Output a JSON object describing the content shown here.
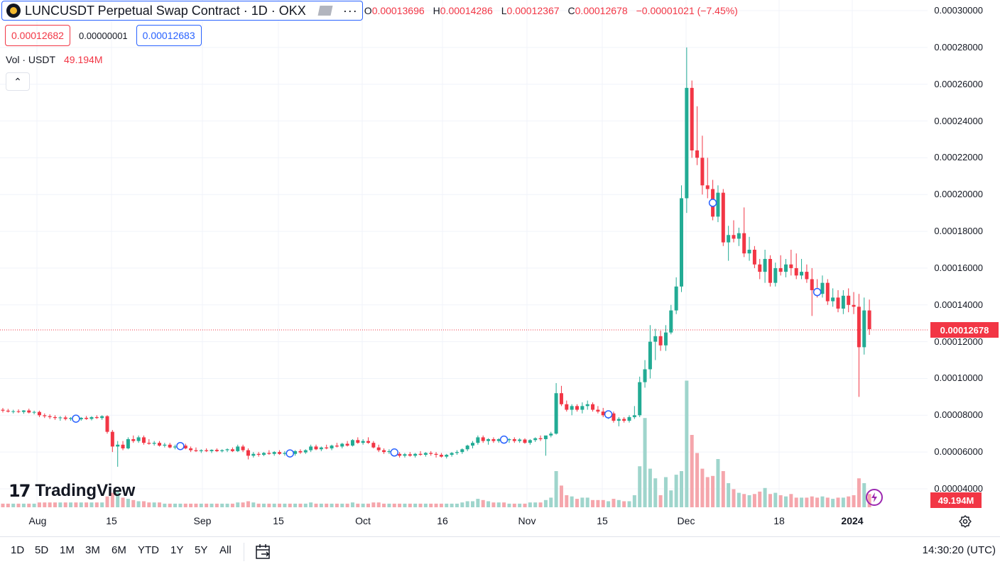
{
  "header": {
    "title": "LUNCUSDT Perpetual Swap Contract · 1D · OKX",
    "dots": "···",
    "ohlc": [
      {
        "label": "O",
        "value": "0.00013696"
      },
      {
        "label": "H",
        "value": "0.00014286"
      },
      {
        "label": "L",
        "value": "0.00012367"
      },
      {
        "label": "C",
        "value": "0.00012678"
      },
      {
        "label": "",
        "value": "−0.00001021 (−7.45%)"
      }
    ]
  },
  "trade": {
    "bid": "0.00012682",
    "spread": "0.00000001",
    "ask": "0.00012683"
  },
  "volume_legend": {
    "label": "Vol · USDT",
    "value": "49.194M"
  },
  "collapse_glyph": "⌃",
  "brand": {
    "mark": "17",
    "name": "TradingView"
  },
  "price_axis": {
    "labels": [
      "0.00030000",
      "0.00028000",
      "0.00026000",
      "0.00024000",
      "0.00022000",
      "0.00020000",
      "0.00018000",
      "0.00016000",
      "0.00014000",
      "0.00012000",
      "0.00010000",
      "0.00008000",
      "0.00006000",
      "0.00004000"
    ],
    "last_price": "0.00012678",
    "volume_tag": "49.194M"
  },
  "time_axis": [
    {
      "label": "Aug",
      "bold": false
    },
    {
      "label": "15",
      "bold": false
    },
    {
      "label": "Sep",
      "bold": false
    },
    {
      "label": "15",
      "bold": false
    },
    {
      "label": "Oct",
      "bold": false
    },
    {
      "label": "16",
      "bold": false
    },
    {
      "label": "Nov",
      "bold": false
    },
    {
      "label": "15",
      "bold": false
    },
    {
      "label": "Dec",
      "bold": false
    },
    {
      "label": "18",
      "bold": false
    },
    {
      "label": "2024",
      "bold": true
    }
  ],
  "bottom_bar": {
    "ranges": [
      "1D",
      "5D",
      "1M",
      "3M",
      "6M",
      "YTD",
      "1Y",
      "5Y",
      "All"
    ],
    "clock": "14:30:20 (UTC)"
  },
  "colors": {
    "up": "#22ab94",
    "down": "#f23645",
    "up_vol": "#9fd5cc",
    "down_vol": "#f5a6ac",
    "accent": "#2962ff"
  },
  "chart_data": {
    "type": "candlestick",
    "y_range": [
      3e-05,
      0.0003
    ],
    "candles": [
      [
        8.3e-05,
        8.4e-05,
        8.15e-05,
        8.25e-05,
        0.3
      ],
      [
        8.25e-05,
        8.35e-05,
        8.15e-05,
        8.2e-05,
        0.3
      ],
      [
        8.2e-05,
        8.3e-05,
        8.1e-05,
        8.22e-05,
        0.3
      ],
      [
        8.22e-05,
        8.32e-05,
        8.12e-05,
        8.18e-05,
        0.3
      ],
      [
        8.18e-05,
        8.28e-05,
        8.08e-05,
        8.26e-05,
        0.3
      ],
      [
        8.26e-05,
        8.36e-05,
        8.1e-05,
        8.15e-05,
        0.3
      ],
      [
        8.15e-05,
        8.25e-05,
        8.05e-05,
        8.18e-05,
        0.3
      ],
      [
        8.18e-05,
        8.25e-05,
        7.9e-05,
        8e-05,
        0.4
      ],
      [
        8e-05,
        8.1e-05,
        7.85e-05,
        7.95e-05,
        0.4
      ],
      [
        7.95e-05,
        8.05e-05,
        7.8e-05,
        7.9e-05,
        0.4
      ],
      [
        7.9e-05,
        8e-05,
        7.75e-05,
        7.85e-05,
        0.4
      ],
      [
        7.85e-05,
        7.95e-05,
        7.7e-05,
        7.88e-05,
        0.4
      ],
      [
        7.88e-05,
        7.98e-05,
        7.72e-05,
        7.8e-05,
        0.4
      ],
      [
        7.8e-05,
        7.9e-05,
        7.7e-05,
        7.85e-05,
        0.4
      ],
      [
        7.85e-05,
        7.95e-05,
        7.72e-05,
        7.78e-05,
        0.4
      ],
      [
        7.78e-05,
        7.9e-05,
        7.7e-05,
        7.86e-05,
        0.4
      ],
      [
        7.86e-05,
        7.96e-05,
        7.75e-05,
        7.8e-05,
        0.4
      ],
      [
        7.8e-05,
        7.95e-05,
        7.72e-05,
        7.9e-05,
        0.4
      ],
      [
        7.9e-05,
        8e-05,
        7.8e-05,
        7.85e-05,
        0.4
      ],
      [
        7.85e-05,
        8e-05,
        7.75e-05,
        7.95e-05,
        0.4
      ],
      [
        7.95e-05,
        8e-05,
        7e-05,
        7.1e-05,
        0.9
      ],
      [
        7.1e-05,
        7.2e-05,
        6e-05,
        6.3e-05,
        1.2
      ],
      [
        6.3e-05,
        6.6e-05,
        5.2e-05,
        6.4e-05,
        1.4
      ],
      [
        6.4e-05,
        6.6e-05,
        6.1e-05,
        6.2e-05,
        0.8
      ],
      [
        6.2e-05,
        6.8e-05,
        6.15e-05,
        6.7e-05,
        0.7
      ],
      [
        6.7e-05,
        6.9e-05,
        6.5e-05,
        6.6e-05,
        0.6
      ],
      [
        6.6e-05,
        6.9e-05,
        6.5e-05,
        6.8e-05,
        0.5
      ],
      [
        6.8e-05,
        6.9e-05,
        6.4e-05,
        6.5e-05,
        0.5
      ],
      [
        6.5e-05,
        6.7e-05,
        6.4e-05,
        6.45e-05,
        0.4
      ],
      [
        6.45e-05,
        6.6e-05,
        6.35e-05,
        6.5e-05,
        0.4
      ],
      [
        6.5e-05,
        6.6e-05,
        6.3e-05,
        6.35e-05,
        0.4
      ],
      [
        6.35e-05,
        6.5e-05,
        6.25e-05,
        6.4e-05,
        0.3
      ],
      [
        6.4e-05,
        6.5e-05,
        6.2e-05,
        6.25e-05,
        0.3
      ],
      [
        6.25e-05,
        6.4e-05,
        6.15e-05,
        6.3e-05,
        0.3
      ],
      [
        6.3e-05,
        6.45e-05,
        6.2e-05,
        6.35e-05,
        0.3
      ],
      [
        6.35e-05,
        6.45e-05,
        6.15e-05,
        6.2e-05,
        0.3
      ],
      [
        6.2e-05,
        6.3e-05,
        6e-05,
        6.1e-05,
        0.3
      ],
      [
        6.1e-05,
        6.25e-05,
        6e-05,
        6.05e-05,
        0.3
      ],
      [
        6.05e-05,
        6.15e-05,
        5.95e-05,
        6.1e-05,
        0.3
      ],
      [
        6.1e-05,
        6.2e-05,
        6e-05,
        6.05e-05,
        0.3
      ],
      [
        6.05e-05,
        6.15e-05,
        5.95e-05,
        6.12e-05,
        0.3
      ],
      [
        6.12e-05,
        6.2e-05,
        6e-05,
        6.05e-05,
        0.3
      ],
      [
        6.05e-05,
        6.15e-05,
        5.98e-05,
        6.1e-05,
        0.3
      ],
      [
        6.1e-05,
        6.2e-05,
        6e-05,
        6.15e-05,
        0.3
      ],
      [
        6.15e-05,
        6.25e-05,
        6e-05,
        6.05e-05,
        0.3
      ],
      [
        6.05e-05,
        6.4e-05,
        6e-05,
        6.3e-05,
        0.4
      ],
      [
        6.3e-05,
        6.4e-05,
        6e-05,
        6.1e-05,
        0.4
      ],
      [
        6.1e-05,
        6.2e-05,
        5.6e-05,
        5.8e-05,
        0.5
      ],
      [
        5.8e-05,
        6e-05,
        5.7e-05,
        5.9e-05,
        0.4
      ],
      [
        5.9e-05,
        6e-05,
        5.75e-05,
        5.85e-05,
        0.3
      ],
      [
        5.85e-05,
        6e-05,
        5.78e-05,
        5.95e-05,
        0.3
      ],
      [
        5.95e-05,
        6.1e-05,
        5.85e-05,
        5.9e-05,
        0.3
      ],
      [
        5.9e-05,
        6.05e-05,
        5.8e-05,
        6e-05,
        0.3
      ],
      [
        6e-05,
        6.1e-05,
        5.85e-05,
        5.9e-05,
        0.3
      ],
      [
        5.9e-05,
        6.05e-05,
        5.8e-05,
        5.95e-05,
        0.3
      ],
      [
        5.95e-05,
        6.05e-05,
        5.85e-05,
        5.9e-05,
        0.3
      ],
      [
        5.9e-05,
        6.1e-05,
        5.8e-05,
        6.05e-05,
        0.3
      ],
      [
        6.05e-05,
        6.15e-05,
        5.9e-05,
        5.98e-05,
        0.3
      ],
      [
        5.98e-05,
        6.15e-05,
        5.9e-05,
        6.1e-05,
        0.3
      ],
      [
        6.1e-05,
        6.4e-05,
        6e-05,
        6.3e-05,
        0.4
      ],
      [
        6.3e-05,
        6.4e-05,
        6.1e-05,
        6.15e-05,
        0.3
      ],
      [
        6.15e-05,
        6.3e-05,
        6.05e-05,
        6.25e-05,
        0.3
      ],
      [
        6.25e-05,
        6.4e-05,
        6.15e-05,
        6.2e-05,
        0.3
      ],
      [
        6.2e-05,
        6.4e-05,
        6.1e-05,
        6.35e-05,
        0.3
      ],
      [
        6.35e-05,
        6.5e-05,
        6.25e-05,
        6.3e-05,
        0.3
      ],
      [
        6.3e-05,
        6.5e-05,
        6.2e-05,
        6.45e-05,
        0.3
      ],
      [
        6.45e-05,
        6.6e-05,
        6.3e-05,
        6.35e-05,
        0.3
      ],
      [
        6.35e-05,
        6.7e-05,
        6.3e-05,
        6.65e-05,
        0.4
      ],
      [
        6.65e-05,
        6.8e-05,
        6.45e-05,
        6.5e-05,
        0.3
      ],
      [
        6.5e-05,
        6.7e-05,
        6.4e-05,
        6.6e-05,
        0.3
      ],
      [
        6.6e-05,
        6.8e-05,
        6.45e-05,
        6.5e-05,
        0.3
      ],
      [
        6.5e-05,
        6.6e-05,
        6.2e-05,
        6.25e-05,
        0.4
      ],
      [
        6.25e-05,
        6.4e-05,
        6e-05,
        6.1e-05,
        0.4
      ],
      [
        6.1e-05,
        6.2e-05,
        5.9e-05,
        6e-05,
        0.3
      ],
      [
        6e-05,
        6.15e-05,
        5.9e-05,
        6.05e-05,
        0.3
      ],
      [
        6.05e-05,
        6.1e-05,
        5.85e-05,
        5.9e-05,
        0.3
      ],
      [
        5.9e-05,
        6e-05,
        5.7e-05,
        5.8e-05,
        0.3
      ],
      [
        5.8e-05,
        5.95e-05,
        5.7e-05,
        5.88e-05,
        0.3
      ],
      [
        5.88e-05,
        6e-05,
        5.75e-05,
        5.8e-05,
        0.3
      ],
      [
        5.8e-05,
        5.95e-05,
        5.7e-05,
        5.9e-05,
        0.3
      ],
      [
        5.9e-05,
        6.05e-05,
        5.8e-05,
        5.85e-05,
        0.3
      ],
      [
        5.85e-05,
        6e-05,
        5.75e-05,
        5.95e-05,
        0.3
      ],
      [
        5.95e-05,
        6.05e-05,
        5.8e-05,
        5.9e-05,
        0.3
      ],
      [
        5.9e-05,
        6e-05,
        5.7e-05,
        5.85e-05,
        0.3
      ],
      [
        5.85e-05,
        5.95e-05,
        5.7e-05,
        5.75e-05,
        0.3
      ],
      [
        5.75e-05,
        5.9e-05,
        5.65e-05,
        5.85e-05,
        0.3
      ],
      [
        5.85e-05,
        6e-05,
        5.75e-05,
        5.95e-05,
        0.3
      ],
      [
        5.95e-05,
        6.1e-05,
        5.85e-05,
        6e-05,
        0.3
      ],
      [
        6e-05,
        6.2e-05,
        5.9e-05,
        6.15e-05,
        0.4
      ],
      [
        6.15e-05,
        6.4e-05,
        6.05e-05,
        6.35e-05,
        0.5
      ],
      [
        6.35e-05,
        6.6e-05,
        6.2e-05,
        6.5e-05,
        0.5
      ],
      [
        6.5e-05,
        6.9e-05,
        6.4e-05,
        6.8e-05,
        0.7
      ],
      [
        6.8e-05,
        6.9e-05,
        6.5e-05,
        6.6e-05,
        0.6
      ],
      [
        6.6e-05,
        6.75e-05,
        6.4e-05,
        6.7e-05,
        0.5
      ],
      [
        6.7e-05,
        6.8e-05,
        6.5e-05,
        6.6e-05,
        0.4
      ],
      [
        6.6e-05,
        6.75e-05,
        6.5e-05,
        6.7e-05,
        0.4
      ],
      [
        6.7e-05,
        6.8e-05,
        6.55e-05,
        6.65e-05,
        0.4
      ],
      [
        6.65e-05,
        6.75e-05,
        6.5e-05,
        6.7e-05,
        0.3
      ],
      [
        6.7e-05,
        6.8e-05,
        6.5e-05,
        6.6e-05,
        0.3
      ],
      [
        6.6e-05,
        6.75e-05,
        6.5e-05,
        6.68e-05,
        0.3
      ],
      [
        6.68e-05,
        6.75e-05,
        6.45e-05,
        6.5e-05,
        0.3
      ],
      [
        6.5e-05,
        6.7e-05,
        6.4e-05,
        6.65e-05,
        0.4
      ],
      [
        6.65e-05,
        6.8e-05,
        6.55e-05,
        6.75e-05,
        0.4
      ],
      [
        6.75e-05,
        6.9e-05,
        6.6e-05,
        6.7e-05,
        0.4
      ],
      [
        6.7e-05,
        6.8e-05,
        5.8e-05,
        6.9e-05,
        0.6
      ],
      [
        6.9e-05,
        7.1e-05,
        6.8e-05,
        7e-05,
        0.8
      ],
      [
        7e-05,
        9.75e-05,
        6.95e-05,
        9.2e-05,
        3.0
      ],
      [
        9.2e-05,
        9.6e-05,
        8.5e-05,
        8.6e-05,
        1.8
      ],
      [
        8.6e-05,
        8.8e-05,
        8.2e-05,
        8.3e-05,
        1.0
      ],
      [
        8.3e-05,
        8.6e-05,
        8e-05,
        8.5e-05,
        0.9
      ],
      [
        8.5e-05,
        8.6e-05,
        8.2e-05,
        8.3e-05,
        0.7
      ],
      [
        8.3e-05,
        8.7e-05,
        8.1e-05,
        8.5e-05,
        0.8
      ],
      [
        8.5e-05,
        8.8e-05,
        8.3e-05,
        8.6e-05,
        0.8
      ],
      [
        8.6e-05,
        8.7e-05,
        8.2e-05,
        8.3e-05,
        0.6
      ],
      [
        8.3e-05,
        8.5e-05,
        8.1e-05,
        8.2e-05,
        0.6
      ],
      [
        8.2e-05,
        8.4e-05,
        7.9e-05,
        8e-05,
        0.6
      ],
      [
        8e-05,
        8.2e-05,
        7.8e-05,
        8.1e-05,
        0.5
      ],
      [
        8.1e-05,
        8.2e-05,
        7.6e-05,
        7.7e-05,
        0.7
      ],
      [
        7.7e-05,
        7.9e-05,
        7.4e-05,
        7.8e-05,
        0.6
      ],
      [
        7.8e-05,
        7.9e-05,
        7.6e-05,
        7.7e-05,
        0.5
      ],
      [
        7.7e-05,
        8e-05,
        7.6e-05,
        7.9e-05,
        0.5
      ],
      [
        7.9e-05,
        8.5e-05,
        7.8e-05,
        8e-05,
        1.0
      ],
      [
        8e-05,
        0.000101,
        7.9e-05,
        9.8e-05,
        3.4
      ],
      [
        9.8e-05,
        0.00011,
        9.5e-05,
        0.000105,
        7.4
      ],
      [
        0.000105,
        0.000129,
        0.0001,
        0.00012,
        3.2
      ],
      [
        0.00012,
        0.000127,
        0.00011,
        0.000123,
        2.4
      ],
      [
        0.000123,
        0.000126,
        0.000115,
        0.000118,
        1.0
      ],
      [
        0.000118,
        0.000129,
        0.000115,
        0.000125,
        2.5
      ],
      [
        0.000125,
        0.00014,
        0.000124,
        0.000137,
        1.4
      ],
      [
        0.000137,
        0.000155,
        0.000135,
        0.00015,
        2.7
      ],
      [
        0.00015,
        0.000205,
        0.000147,
        0.000198,
        3.0
      ],
      [
        0.000198,
        0.00028,
        0.00019,
        0.000258,
        10.5
      ],
      [
        0.000258,
        0.000262,
        0.00022,
        0.000224,
        6.0
      ],
      [
        0.000224,
        0.000248,
        0.000216,
        0.00022,
        4.5
      ],
      [
        0.00022,
        0.000232,
        0.0002,
        0.000205,
        3.2
      ],
      [
        0.000205,
        0.00022,
        0.000198,
        0.000203,
        2.5
      ],
      [
        0.000203,
        0.000208,
        0.000186,
        0.000188,
        2.6
      ],
      [
        0.000188,
        0.000205,
        0.000185,
        0.000201,
        4.0
      ],
      [
        0.000201,
        0.000203,
        0.000172,
        0.000174,
        3.0
      ],
      [
        0.000174,
        0.000183,
        0.000164,
        0.000178,
        2.0
      ],
      [
        0.000178,
        0.000186,
        0.000174,
        0.000176,
        1.5
      ],
      [
        0.000176,
        0.000182,
        0.000172,
        0.000179,
        1.2
      ],
      [
        0.000179,
        0.000193,
        0.000166,
        0.000168,
        1.1
      ],
      [
        0.000168,
        0.000177,
        0.000164,
        0.00017,
        1.0
      ],
      [
        0.00017,
        0.000172,
        0.00016,
        0.000162,
        1.1
      ],
      [
        0.000162,
        0.000165,
        0.000154,
        0.000158,
        1.3
      ],
      [
        0.000158,
        0.00017,
        0.000152,
        0.000165,
        1.6
      ],
      [
        0.000165,
        0.000167,
        0.00015,
        0.000152,
        1.1
      ],
      [
        0.000152,
        0.000163,
        0.00015,
        0.00016,
        1.2
      ],
      [
        0.00016,
        0.000167,
        0.000156,
        0.000158,
        1.0
      ],
      [
        0.000158,
        0.000165,
        0.000155,
        0.000162,
        0.9
      ],
      [
        0.000162,
        0.00017,
        0.000156,
        0.00016,
        1.1
      ],
      [
        0.00016,
        0.000168,
        0.000154,
        0.000156,
        0.8
      ],
      [
        0.000156,
        0.000165,
        0.000154,
        0.000158,
        0.8
      ],
      [
        0.000158,
        0.000162,
        0.000152,
        0.000154,
        0.8
      ],
      [
        0.000154,
        0.00016,
        0.000134,
        0.000148,
        0.9
      ],
      [
        0.000148,
        0.000154,
        0.000144,
        0.000146,
        0.8
      ],
      [
        0.000146,
        0.000156,
        0.000144,
        0.000152,
        0.9
      ],
      [
        0.000152,
        0.000154,
        0.00014,
        0.000142,
        0.8
      ],
      [
        0.000142,
        0.000149,
        0.000139,
        0.000144,
        0.7
      ],
      [
        0.000144,
        0.000148,
        0.000136,
        0.000138,
        0.8
      ],
      [
        0.000138,
        0.000148,
        0.000135,
        0.000145,
        0.8
      ],
      [
        0.000145,
        0.000149,
        0.000136,
        0.00014,
        0.9
      ],
      [
        0.00014,
        0.000147,
        0.000135,
        0.000139,
        1.0
      ],
      [
        0.000139,
        0.000146,
        9e-05,
        0.000117,
        2.4
      ],
      [
        0.000117,
        0.000144,
        0.000113,
        0.000137,
        2.0
      ],
      [
        0.000137,
        0.0001429,
        0.0001237,
        0.0001268,
        1.1
      ]
    ]
  }
}
